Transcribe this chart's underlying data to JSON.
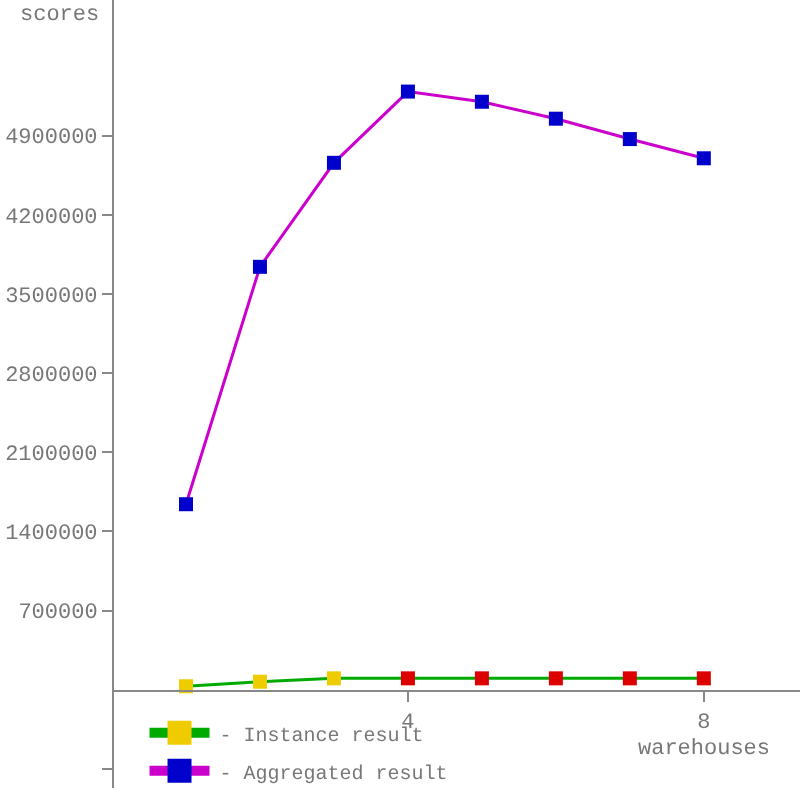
{
  "chart_data": {
    "type": "line",
    "xlabel": "warehouses",
    "ylabel": "scores",
    "x": [
      1,
      2,
      3,
      4,
      5,
      6,
      7,
      8
    ],
    "series": [
      {
        "name": "- Instance result",
        "color": "#00aa00",
        "colors": [
          "#eecc00",
          "#eecc00",
          "#eecc00",
          "#dd0000",
          "#dd0000",
          "#dd0000",
          "#dd0000",
          "#dd0000"
        ],
        "values": [
          30000,
          70000,
          100000,
          100000,
          100000,
          100000,
          100000,
          100000
        ]
      },
      {
        "name": "- Aggregated result",
        "color": "#cc00cc",
        "colors": [
          "#0000cc",
          "#0000cc",
          "#0000cc",
          "#0000cc",
          "#0000cc",
          "#0000cc",
          "#0000cc",
          "#0000cc"
        ],
        "values": [
          1640000,
          3740000,
          4660000,
          5290000,
          5200000,
          5050000,
          4870000,
          4700000
        ]
      }
    ],
    "xlim": [
      0,
      9.3
    ],
    "ylim": [
      -870000,
      6100000
    ],
    "xticks": [
      4,
      8
    ],
    "yticks": [
      {
        "value": -700000,
        "label": null
      },
      700000,
      1400000,
      2100000,
      2800000,
      3500000,
      4200000,
      4900000
    ],
    "marker": "square",
    "legend": "bottom left"
  }
}
